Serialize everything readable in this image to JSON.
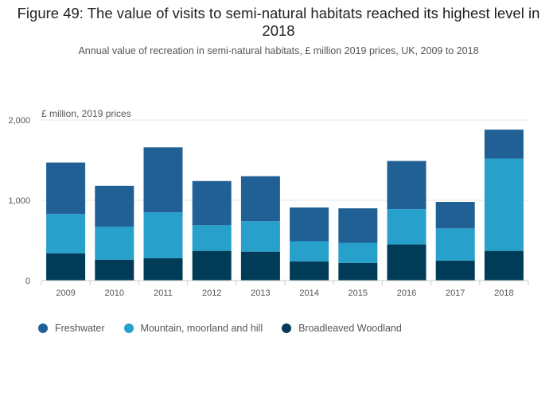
{
  "title": "Figure 49: The value of visits to semi-natural habitats reached its highest level in 2018",
  "subtitle": "Annual value of recreation in semi-natural habitats, £ million 2019 prices, UK, 2009 to 2018",
  "chart_data": {
    "type": "bar",
    "stacked": true,
    "ylabel": "£ million, 2019 prices",
    "xlabel": "",
    "ylim": [
      0,
      2000
    ],
    "yticks": [
      0,
      1000,
      2000
    ],
    "ytick_labels": [
      "0",
      "1,000",
      "2,000"
    ],
    "categories": [
      "2009",
      "2010",
      "2011",
      "2012",
      "2013",
      "2014",
      "2015",
      "2016",
      "2017",
      "2018"
    ],
    "series": [
      {
        "name": "Broadleaved Woodland",
        "color": "#003c57",
        "values": [
          340,
          260,
          280,
          370,
          360,
          240,
          220,
          450,
          250,
          370
        ]
      },
      {
        "name": "Mountain, moorland and hill",
        "color": "#27a0cc",
        "values": [
          490,
          410,
          570,
          320,
          380,
          250,
          250,
          440,
          400,
          1150
        ]
      },
      {
        "name": "Freshwater",
        "color": "#206095",
        "values": [
          640,
          510,
          810,
          550,
          560,
          420,
          430,
          600,
          330,
          360
        ]
      }
    ],
    "legend_order": [
      "Freshwater",
      "Mountain, moorland and hill",
      "Broadleaved Woodland"
    ],
    "grid": true
  }
}
